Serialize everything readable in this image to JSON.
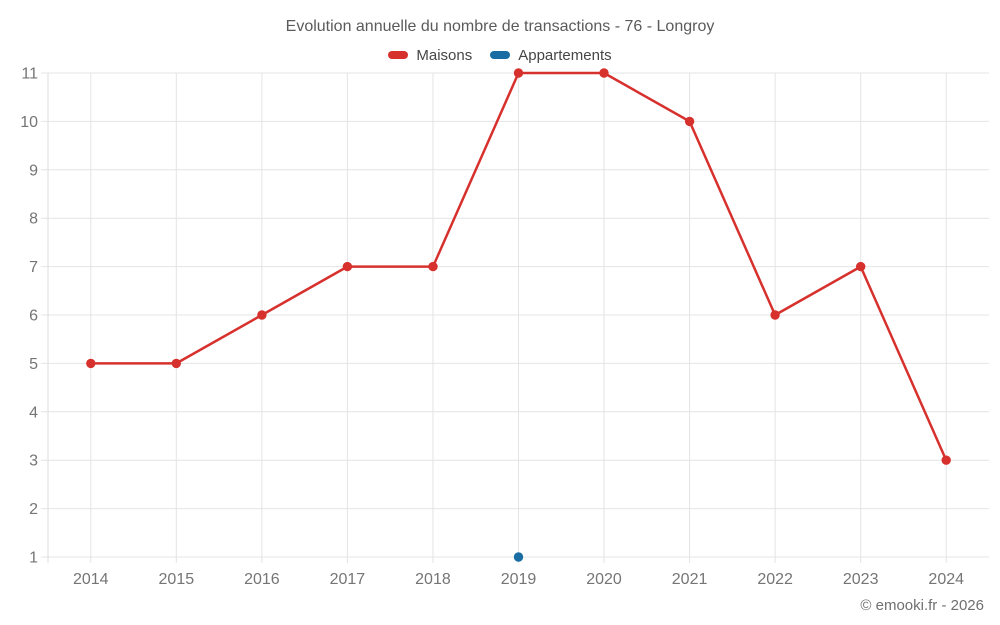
{
  "chart_data": {
    "type": "line",
    "title": "Evolution annuelle du nombre de transactions - 76 - Longroy",
    "categories": [
      "2014",
      "2015",
      "2016",
      "2017",
      "2018",
      "2019",
      "2020",
      "2021",
      "2022",
      "2023",
      "2024"
    ],
    "series": [
      {
        "name": "Maisons",
        "color": "#d7312e",
        "values": [
          5,
          5,
          6,
          7,
          7,
          11,
          11,
          10,
          6,
          7,
          3
        ]
      },
      {
        "name": "Appartements",
        "color": "#1a6da3",
        "values": [
          null,
          null,
          null,
          null,
          null,
          1,
          null,
          null,
          null,
          null,
          null
        ]
      }
    ],
    "ylim": [
      1,
      11
    ],
    "yticks": [
      1,
      2,
      3,
      4,
      5,
      6,
      7,
      8,
      9,
      10,
      11
    ],
    "xlabel": "",
    "ylabel": "",
    "grid": true,
    "legend_position": "top",
    "colors": {
      "gridline": "#e4e4e4",
      "axis_line": "#dcdcdc",
      "tick_label": "#757575"
    }
  },
  "footer": {
    "copyright": "© emooki.fr - 2026"
  }
}
